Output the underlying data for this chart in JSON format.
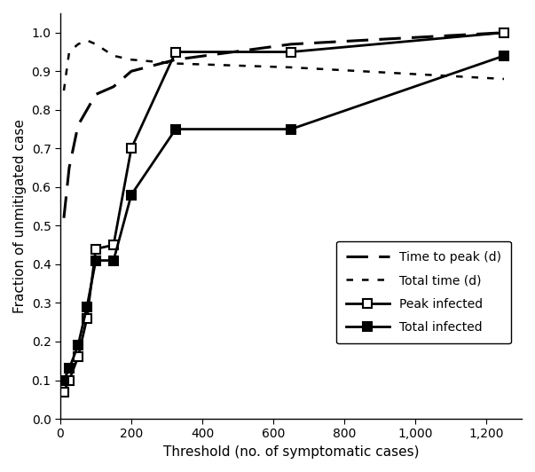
{
  "x": [
    10,
    25,
    50,
    75,
    100,
    150,
    200,
    325,
    650,
    1250
  ],
  "peak_infected": [
    0.07,
    0.1,
    0.16,
    0.26,
    0.44,
    0.45,
    0.7,
    0.95,
    0.95,
    1.0
  ],
  "total_infected": [
    0.1,
    0.13,
    0.19,
    0.29,
    0.41,
    0.41,
    0.58,
    0.75,
    0.75,
    0.94
  ],
  "time_to_peak": [
    0.52,
    0.65,
    0.76,
    0.8,
    0.84,
    0.86,
    0.9,
    0.93,
    0.97,
    1.0
  ],
  "total_time": [
    0.85,
    0.95,
    0.97,
    0.98,
    0.97,
    0.94,
    0.93,
    0.92,
    0.91,
    0.88
  ],
  "legend_labels": [
    "Peak infected",
    "Total infected",
    "Time to peak (d)",
    "Total time (d)"
  ],
  "xlabel": "Threshold (no. of symptomatic cases)",
  "ylabel": "Fraction of unmitigated case",
  "xlim": [
    0,
    1300
  ],
  "ylim": [
    0.0,
    1.05
  ],
  "xticks": [
    0,
    200,
    400,
    600,
    800,
    1000,
    1200
  ],
  "yticks": [
    0.0,
    0.1,
    0.2,
    0.3,
    0.4,
    0.5,
    0.6,
    0.7,
    0.8,
    0.9,
    1.0
  ],
  "background": "#ffffff"
}
